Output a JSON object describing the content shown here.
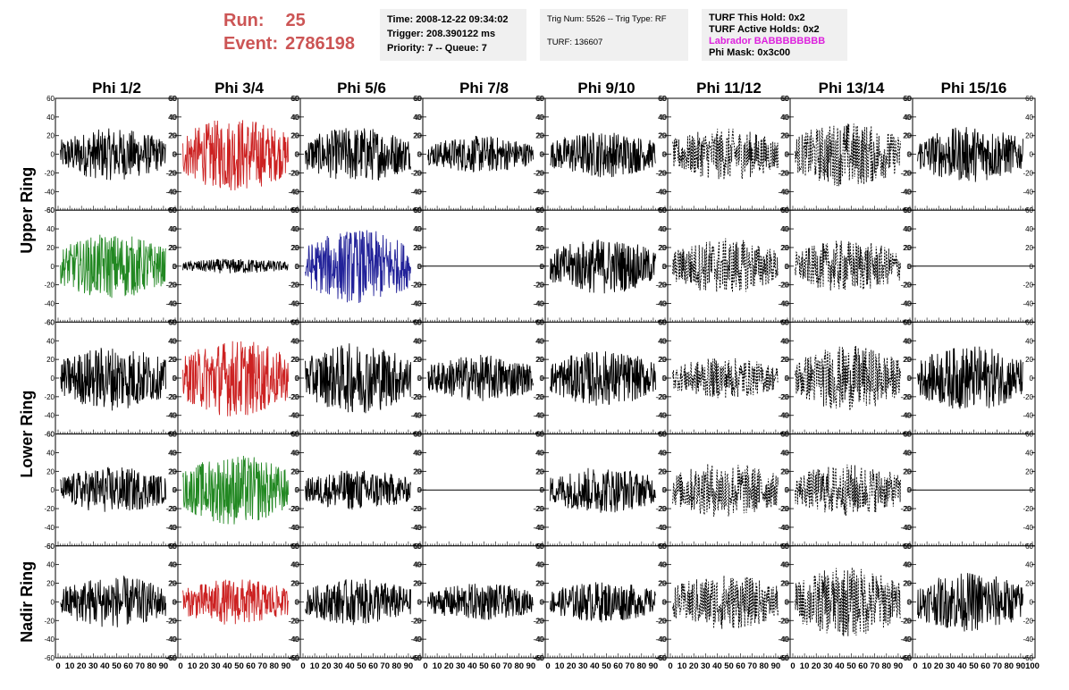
{
  "header": {
    "run_label": "Run:",
    "run_value": "25",
    "event_label": "Event:",
    "event_value": "2786198",
    "time_box": {
      "time": "Time: 2008-12-22 09:34:02",
      "trigger": "Trigger: 208.390122 ms",
      "priority": "Priority: 7 -- Queue: 7"
    },
    "trig_box": {
      "trig": "Trig Num: 5526 -- Trig Type: RF",
      "turf": "TURF: 136607"
    },
    "turf_box": {
      "this_hold": "TURF This Hold: 0x2",
      "active_holds": "TURF Active Holds: 0x2",
      "labrador": "Labrador BABBBBBBBB",
      "phi_mask": "Phi Mask: 0x3c00"
    }
  },
  "colors": {
    "header_red": "#cc5555",
    "labrador_magenta": "#dd22dd",
    "trace_black": "#000000",
    "trace_red": "#cc2222",
    "trace_green": "#228822",
    "trace_blue": "#222299"
  },
  "chart_data": {
    "type": "line",
    "xlim": [
      0,
      100
    ],
    "ylim": [
      -60,
      60
    ],
    "x_ticks": [
      0,
      10,
      20,
      30,
      40,
      50,
      60,
      70,
      80,
      90,
      100
    ],
    "y_ticks": [
      -60,
      -40,
      -20,
      0,
      20,
      40,
      60
    ],
    "column_labels": [
      "Phi 1/2",
      "Phi 3/4",
      "Phi 5/6",
      "Phi 7/8",
      "Phi 9/10",
      "Phi 11/12",
      "Phi 13/14",
      "Phi 15/16"
    ],
    "ring_labels": [
      {
        "label": "Upper Ring",
        "rows": [
          0,
          1
        ]
      },
      {
        "label": "Lower Ring",
        "rows": [
          2,
          3
        ]
      },
      {
        "label": "Nadir Ring",
        "rows": [
          4
        ]
      }
    ],
    "traces": [
      [
        {
          "color": "#000000",
          "style": "solid",
          "amplitude": 28
        },
        {
          "color": "#cc2222",
          "style": "solid",
          "amplitude": 40
        },
        {
          "color": "#000000",
          "style": "solid",
          "amplitude": 30
        },
        {
          "color": "#000000",
          "style": "solid",
          "amplitude": 20
        },
        {
          "color": "#000000",
          "style": "solid",
          "amplitude": 25
        },
        {
          "color": "#000000",
          "style": "dashed",
          "amplitude": 28
        },
        {
          "color": "#000000",
          "style": "dashed",
          "amplitude": 35
        },
        {
          "color": "#000000",
          "style": "solid",
          "amplitude": 30
        }
      ],
      [
        {
          "color": "#228822",
          "style": "solid",
          "amplitude": 35
        },
        {
          "color": "#000000",
          "style": "solid",
          "amplitude": 8
        },
        {
          "color": "#222299",
          "style": "solid",
          "amplitude": 40
        },
        {
          "color": "#000000",
          "style": "flat",
          "amplitude": 0
        },
        {
          "color": "#000000",
          "style": "solid",
          "amplitude": 30
        },
        {
          "color": "#000000",
          "style": "dashed",
          "amplitude": 30
        },
        {
          "color": "#000000",
          "style": "dashed",
          "amplitude": 28
        },
        {
          "color": "#000000",
          "style": "flat",
          "amplitude": 0
        }
      ],
      [
        {
          "color": "#000000",
          "style": "solid",
          "amplitude": 35
        },
        {
          "color": "#cc2222",
          "style": "solid",
          "amplitude": 42
        },
        {
          "color": "#000000",
          "style": "solid",
          "amplitude": 38
        },
        {
          "color": "#000000",
          "style": "solid",
          "amplitude": 25
        },
        {
          "color": "#000000",
          "style": "solid",
          "amplitude": 30
        },
        {
          "color": "#000000",
          "style": "dashed",
          "amplitude": 22
        },
        {
          "color": "#000000",
          "style": "dashed",
          "amplitude": 35
        },
        {
          "color": "#000000",
          "style": "solid",
          "amplitude": 35
        }
      ],
      [
        {
          "color": "#000000",
          "style": "solid",
          "amplitude": 25
        },
        {
          "color": "#228822",
          "style": "solid",
          "amplitude": 38
        },
        {
          "color": "#000000",
          "style": "solid",
          "amplitude": 22
        },
        {
          "color": "#000000",
          "style": "flat",
          "amplitude": 0
        },
        {
          "color": "#000000",
          "style": "solid",
          "amplitude": 25
        },
        {
          "color": "#000000",
          "style": "dashed",
          "amplitude": 30
        },
        {
          "color": "#000000",
          "style": "dashed",
          "amplitude": 28
        },
        {
          "color": "#000000",
          "style": "flat",
          "amplitude": 0
        }
      ],
      [
        {
          "color": "#000000",
          "style": "solid",
          "amplitude": 28
        },
        {
          "color": "#cc2222",
          "style": "solid",
          "amplitude": 25
        },
        {
          "color": "#000000",
          "style": "solid",
          "amplitude": 25
        },
        {
          "color": "#000000",
          "style": "solid",
          "amplitude": 20
        },
        {
          "color": "#000000",
          "style": "solid",
          "amplitude": 22
        },
        {
          "color": "#000000",
          "style": "dashed",
          "amplitude": 30
        },
        {
          "color": "#000000",
          "style": "dashed",
          "amplitude": 38
        },
        {
          "color": "#000000",
          "style": "solid",
          "amplitude": 32
        }
      ]
    ]
  }
}
